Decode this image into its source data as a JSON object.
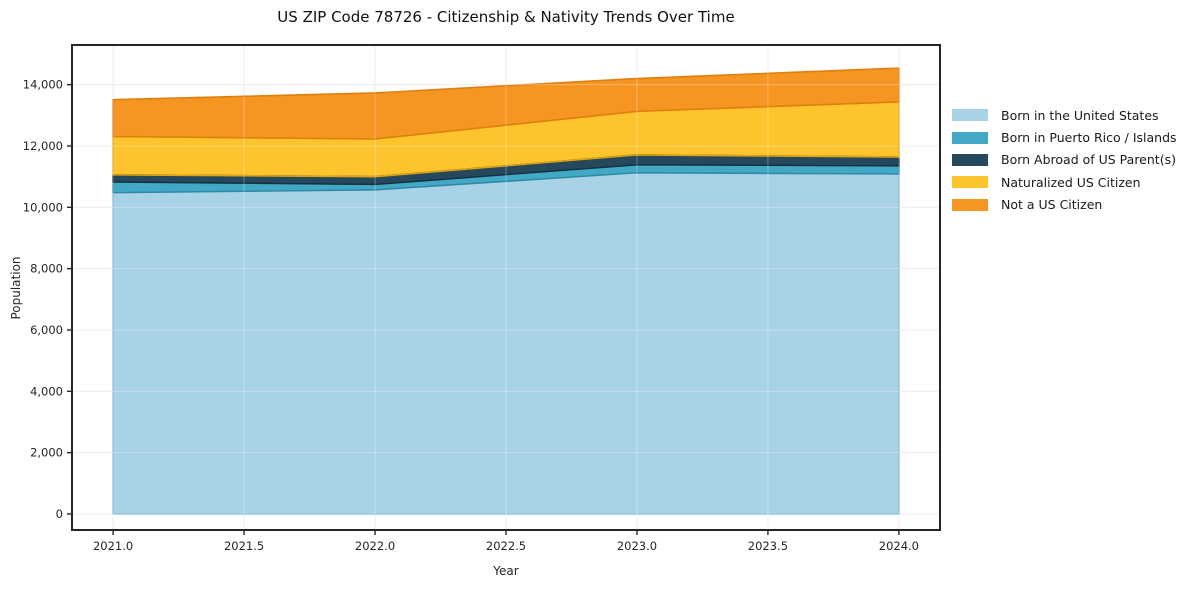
{
  "chart_data": {
    "type": "area",
    "stacked": true,
    "title": "US ZIP Code 78726 - Citizenship & Nativity Trends Over Time",
    "xlabel": "Year",
    "ylabel": "Population",
    "x": [
      2021,
      2022,
      2023,
      2024
    ],
    "x_ticks": [
      2021.0,
      2021.5,
      2022.0,
      2022.5,
      2023.0,
      2023.5,
      2024.0
    ],
    "x_tick_labels": [
      "2021.0",
      "2021.5",
      "2022.0",
      "2022.5",
      "2023.0",
      "2023.5",
      "2024.0"
    ],
    "y_ticks": [
      0,
      2000,
      4000,
      6000,
      8000,
      10000,
      12000,
      14000
    ],
    "y_tick_labels": [
      "0",
      "2,000",
      "4,000",
      "6,000",
      "8,000",
      "10,000",
      "12,000",
      "14,000"
    ],
    "xlim": [
      2020.843,
      2024.157
    ],
    "ylim": [
      -522,
      15294
    ],
    "grid": true,
    "legend_position": "right",
    "series": [
      {
        "name": "Born in the United States",
        "color": "#a8d3e7",
        "edge": "#84b7d4",
        "values": [
          10480,
          10570,
          11130,
          11090
        ]
      },
      {
        "name": "Born in Puerto Rico / Islands",
        "color": "#41a9c5",
        "edge": "#2f89a4",
        "values": [
          350,
          180,
          260,
          265
        ]
      },
      {
        "name": "Born Abroad of US Parent(s)",
        "color": "#25485d",
        "edge": "#16303f",
        "values": [
          230,
          250,
          320,
          285
        ]
      },
      {
        "name": "Naturalized US Citizen",
        "color": "#fdc42e",
        "edge": "#dda513",
        "values": [
          1250,
          1230,
          1420,
          1800
        ]
      },
      {
        "name": "Not a US Citizen",
        "color": "#f79522",
        "edge": "#e07f10",
        "values": [
          1200,
          1500,
          1070,
          1100
        ]
      }
    ],
    "cumulative_totals": [
      13510,
      13730,
      14200,
      14540
    ],
    "colors": {
      "spine": "#262626",
      "grid": "#e7e7ec",
      "tick_text": "#262626"
    }
  }
}
